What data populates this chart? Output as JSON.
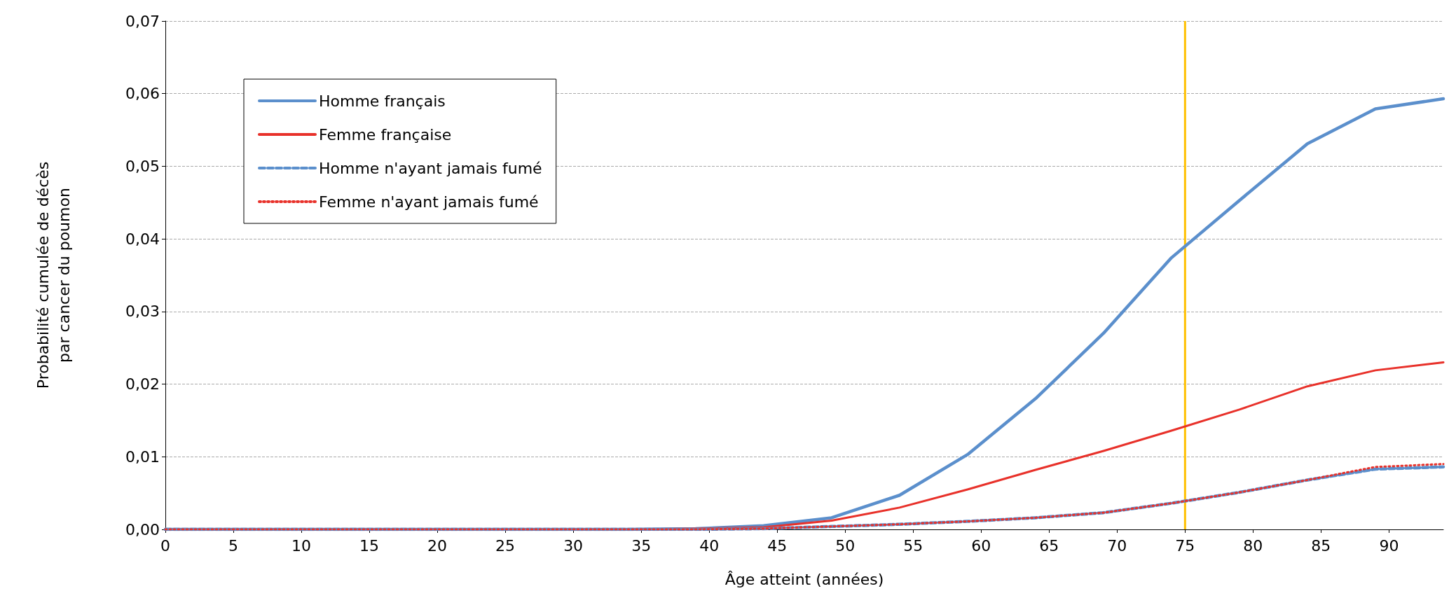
{
  "chart_data": {
    "type": "line",
    "xlabel": "Âge atteint (années)",
    "ylabel": "Probabilité cumulée de décès\npar cancer du poumon",
    "x": [
      0,
      5,
      10,
      15,
      20,
      25,
      30,
      34,
      39,
      44,
      49,
      54,
      59,
      64,
      69,
      74,
      79,
      84,
      89,
      94
    ],
    "series": [
      {
        "name": "Homme français",
        "color": "#5b8fcc",
        "line_style": "solid",
        "values": [
          0,
          0,
          0,
          0,
          0,
          0,
          0,
          0,
          0.0001,
          0.0005,
          0.0016,
          0.0047,
          0.0103,
          0.018,
          0.027,
          0.0374,
          0.0453,
          0.0531,
          0.0579,
          0.0593
        ]
      },
      {
        "name": "Femme française",
        "color": "#e8312a",
        "line_style": "solid",
        "values": [
          0,
          0,
          0,
          0,
          0,
          0,
          0,
          0,
          0.0001,
          0.0003,
          0.0012,
          0.003,
          0.0055,
          0.0082,
          0.0108,
          0.0136,
          0.0165,
          0.0197,
          0.0219,
          0.023
        ]
      },
      {
        "name": "Homme n'ayant jamais fumé",
        "color": "#5b8fcc",
        "line_style": "dashed",
        "values": [
          0,
          0,
          0,
          0,
          0,
          0,
          0,
          0,
          0,
          0.0001,
          0.0004,
          0.0007,
          0.0011,
          0.0016,
          0.0023,
          0.0036,
          0.0051,
          0.0068,
          0.0083,
          0.0086
        ]
      },
      {
        "name": "Femme n'ayant jamais fumé",
        "color": "#e8312a",
        "line_style": "dotted",
        "values": [
          0,
          0,
          0,
          0,
          0,
          0,
          0,
          0,
          0,
          0.0001,
          0.0004,
          0.0007,
          0.0011,
          0.0016,
          0.0023,
          0.0036,
          0.0051,
          0.0068,
          0.0086,
          0.009
        ]
      }
    ],
    "xlim": [
      0,
      94
    ],
    "xticks": [
      0,
      5,
      10,
      15,
      20,
      25,
      30,
      35,
      40,
      45,
      50,
      55,
      60,
      65,
      70,
      75,
      80,
      85,
      90
    ],
    "ylim": [
      0,
      0.07
    ],
    "yticks": [
      {
        "value": 0,
        "label": "0,00"
      },
      {
        "value": 0.01,
        "label": "0,01"
      },
      {
        "value": 0.02,
        "label": "0,02"
      },
      {
        "value": 0.03,
        "label": "0,03"
      },
      {
        "value": 0.04,
        "label": "0,04"
      },
      {
        "value": 0.05,
        "label": "0,05"
      },
      {
        "value": 0.06,
        "label": "0,06"
      },
      {
        "value": 0.07,
        "label": "0,07"
      }
    ],
    "ref_lines": [
      {
        "axis": "x",
        "value": 75,
        "color": "#ffc000"
      }
    ],
    "grid": "y",
    "legend": "top left",
    "marker": "none"
  }
}
